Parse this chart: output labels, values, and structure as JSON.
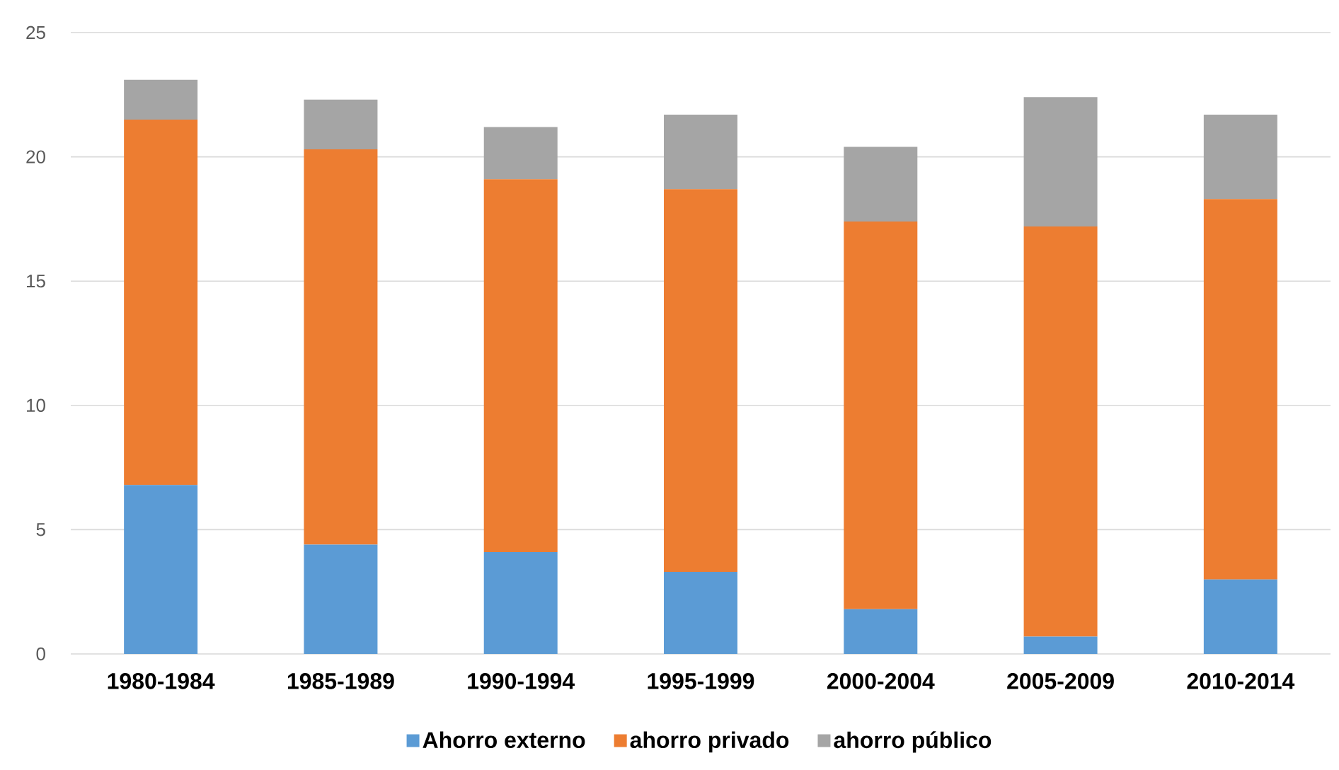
{
  "chart_data": {
    "type": "bar",
    "stacked": true,
    "categories": [
      "1980-1984",
      "1985-1989",
      "1990-1994",
      "1995-1999",
      "2000-2004",
      "2005-2009",
      "2010-2014"
    ],
    "series": [
      {
        "name": "Ahorro externo",
        "color": "#5b9bd5",
        "values": [
          6.8,
          4.4,
          4.1,
          3.3,
          1.8,
          0.7,
          3.0
        ]
      },
      {
        "name": "ahorro privado",
        "color": "#ed7d31",
        "values": [
          14.7,
          15.9,
          15.0,
          15.4,
          15.6,
          16.5,
          15.3
        ]
      },
      {
        "name": "ahorro público",
        "color": "#a5a5a5",
        "values": [
          1.6,
          2.0,
          2.1,
          3.0,
          3.0,
          5.2,
          3.4
        ]
      }
    ],
    "ylim": [
      0,
      25
    ],
    "yticks": [
      0,
      5,
      10,
      15,
      20,
      25
    ],
    "grid": "y",
    "legend": "bottom"
  }
}
